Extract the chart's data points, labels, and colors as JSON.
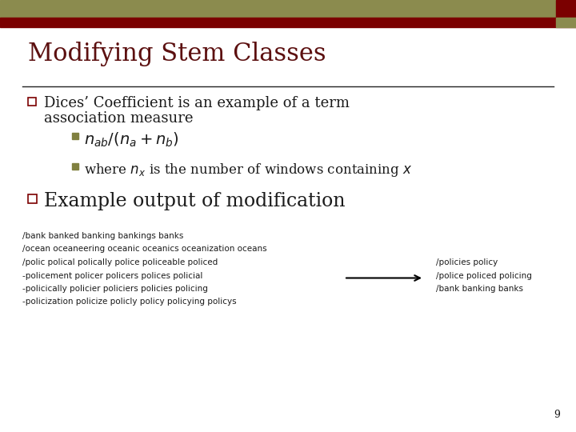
{
  "title": "Modifying Stem Classes",
  "title_color": "#5c1010",
  "bg_color": "#ffffff",
  "header_bar1_color": "#8b8b4e",
  "header_bar2_color": "#7b0000",
  "bullet1_line1": "Dices’ Coefficient is an example of a term",
  "bullet1_line2": "association measure",
  "bullet2_text": "Example output of modification",
  "sub1_formula": "$n_{ab}/(n_a + n_b)$",
  "sub2_text": "where $n_x$ is the number of windows containing $x$",
  "left_col_lines": [
    "/bank banked banking bankings banks",
    "/ocean oceaneering oceanic oceanics oceanization oceans",
    "/polic polical polically police policeable policed",
    "-policement policer policers polices policial",
    "-policically policier policiers policies policing",
    "-policization policize policly policy policying policys"
  ],
  "right_col_lines": [
    "/policies policy",
    "/police policed policing",
    "/bank banking banks"
  ],
  "page_number": "9",
  "title_font": 22,
  "bullet_font": 13,
  "bullet2_font": 17,
  "sub_font": 12,
  "body_font": 7.5,
  "square_color": "#808040",
  "text_color": "#1a1a1a"
}
